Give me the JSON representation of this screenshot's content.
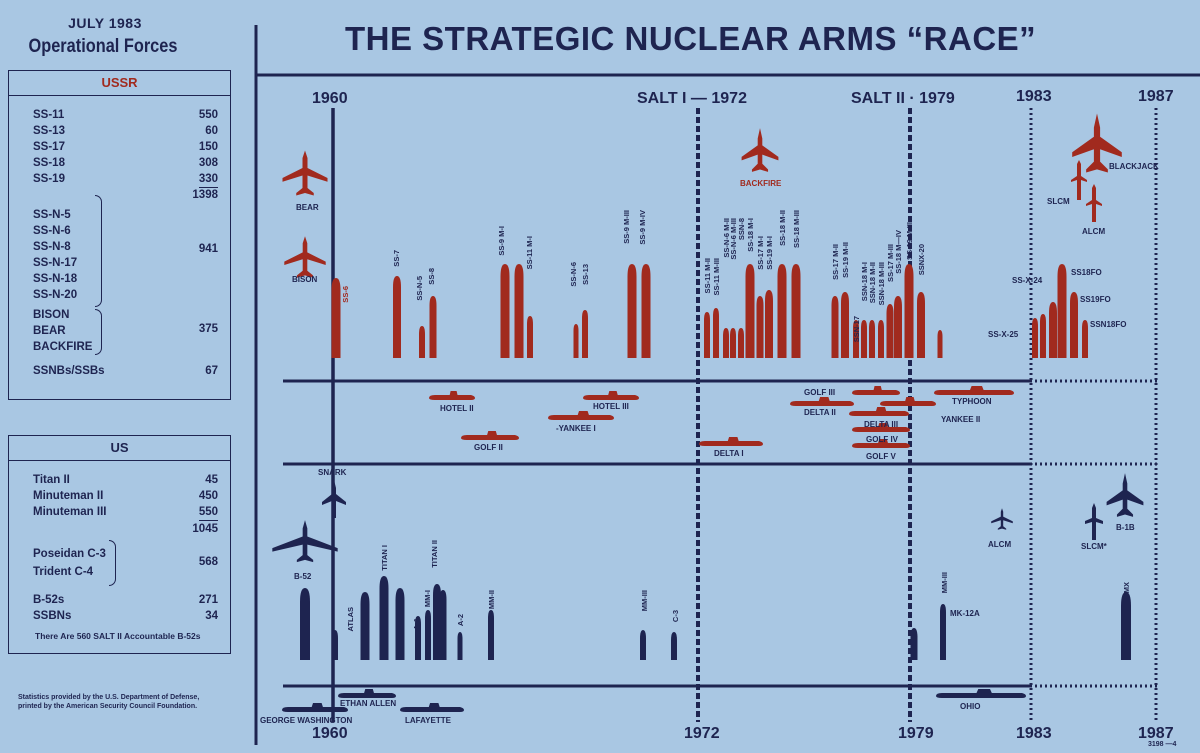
{
  "sidebar": {
    "date": "JULY 1983",
    "title": "Operational Forces",
    "ussr": {
      "header": "USSR",
      "icbms": [
        {
          "name": "SS-11",
          "value": "550"
        },
        {
          "name": "SS-13",
          "value": "60"
        },
        {
          "name": "SS-17",
          "value": "150"
        },
        {
          "name": "SS-18",
          "value": "308"
        },
        {
          "name": "SS-19",
          "value": "330"
        }
      ],
      "icbm_total": "1398",
      "slbms": [
        "SS-N-5",
        "SS-N-6",
        "SS-N-8",
        "SS-N-17",
        "SS-N-18",
        "SS-N-20"
      ],
      "slbm_total": "941",
      "bombers": [
        "BISON",
        "BEAR",
        "BACKFIRE"
      ],
      "bomber_total": "375",
      "subs_label": "SSNBs/SSBs",
      "subs_value": "67"
    },
    "us": {
      "header": "US",
      "icbms": [
        {
          "name": "Titan  II",
          "value": "45"
        },
        {
          "name": "Minuteman  II",
          "value": "450"
        },
        {
          "name": "Minuteman  III",
          "value": "550"
        }
      ],
      "icbm_total": "1045",
      "slbms": [
        "Poseidan  C-3",
        "Trident  C-4"
      ],
      "slbm_total": "568",
      "b52_label": "B-52s",
      "b52_value": "271",
      "ssbn_label": "SSBNs",
      "ssbn_value": "34",
      "note": "There  Are 560 SALT II Accountable B-52s"
    },
    "footnote": [
      "Statistics provided by the U.S. Department of Defense,",
      "printed by the American Security Council Foundation."
    ]
  },
  "title": "THE STRATEGIC NUCLEAR ARMS “RACE”",
  "timeline": {
    "top": {
      "y1960": "1960",
      "salt1": "SALT I — 1972",
      "salt2": "SALT II · 1979",
      "y1983": "1983",
      "y1987": "1987"
    },
    "bottom": {
      "y1960": "1960",
      "y1972": "1972",
      "y1979": "1979",
      "y1983": "1983",
      "y1987": "1987"
    }
  },
  "ussr_labels": {
    "bear": "BEAR",
    "bison": "BISON",
    "backfire": "BACKFIRE",
    "blackjack": "BLACKJACK",
    "slcm": "SLCM",
    "alcm": "ALCM",
    "ss18fo": "SS18FO",
    "ss19fo": "SS19FO",
    "ssn18fo": "SSN18FO",
    "ssx24": "SS-X-24",
    "ssx25": "SS-X-25",
    "hotel2": "HOTEL II",
    "hotel3": "HOTEL III",
    "yankee1": "-YANKEE I",
    "golf2": "GOLF II",
    "delta1": "DELTA I",
    "golf3": "GOLF III",
    "delta2": "DELTA II",
    "delta3": "DELTA III",
    "golf4": "GOLF IV",
    "golf5": "GOLF V",
    "typhoon": "TYPHOON",
    "yankee2": "YANKEE II"
  },
  "ussr_missiles": {
    "ss6": "SS-6",
    "ss7": "SS-7",
    "ssn5": "SS-N-5",
    "ss8": "SS-8",
    "ss9m1": "SS-9  M-I",
    "ss11m1": "SS-11 M-I",
    "ssn6": "SS-N-6",
    "ss13": "SS-13",
    "ss9m3": "SS-9 M-III",
    "ss9m4": "SS-9 M-IV",
    "g72": [
      "SS-11 M-II",
      "SS-11 M-III",
      "SS-N-6 M-II",
      "SS-N-6 M-III",
      "SSN-8",
      "SS-18 M-I",
      "SS-17 M-I",
      "SS-19 M-I",
      "SS-18 M-II",
      "SS-18 M-III"
    ],
    "g79": [
      "SS-17 M-II",
      "SS-19 M-II",
      "SSN-17",
      "SSN-18 M-I",
      "SSN-18 M-II",
      "SSN-18 M-III",
      "SS-17 M-III",
      "SS-18 M—IV",
      "SS-19 M-III",
      "SSNX-20"
    ]
  },
  "us_labels": {
    "snark": "SNARK",
    "b52": "B-52",
    "alcm": "ALCM",
    "slcm": "SLCM*",
    "b1b": "B-1B",
    "mk12a": "MK-12A",
    "atlas": "ATLAS",
    "titan1": "TITAN I",
    "titan2": "TITAN II",
    "a1": "A-1",
    "mm1": "MM-I",
    "a2": "A-2",
    "mm2": "MM-II",
    "mm3": "MM-III",
    "c3": "C-3",
    "mm3b": "MM-III",
    "mx": "MX",
    "gw": "GEORGE WASHINGTON",
    "ethan": "ETHAN ALLEN",
    "lafayette": "LAFAYETTE",
    "ohio": "OHIO"
  },
  "slide_code": "3198 —4",
  "colors": {
    "background": "#a9c7e3",
    "ussr": "#a12a1e",
    "us": "#1e2450"
  }
}
